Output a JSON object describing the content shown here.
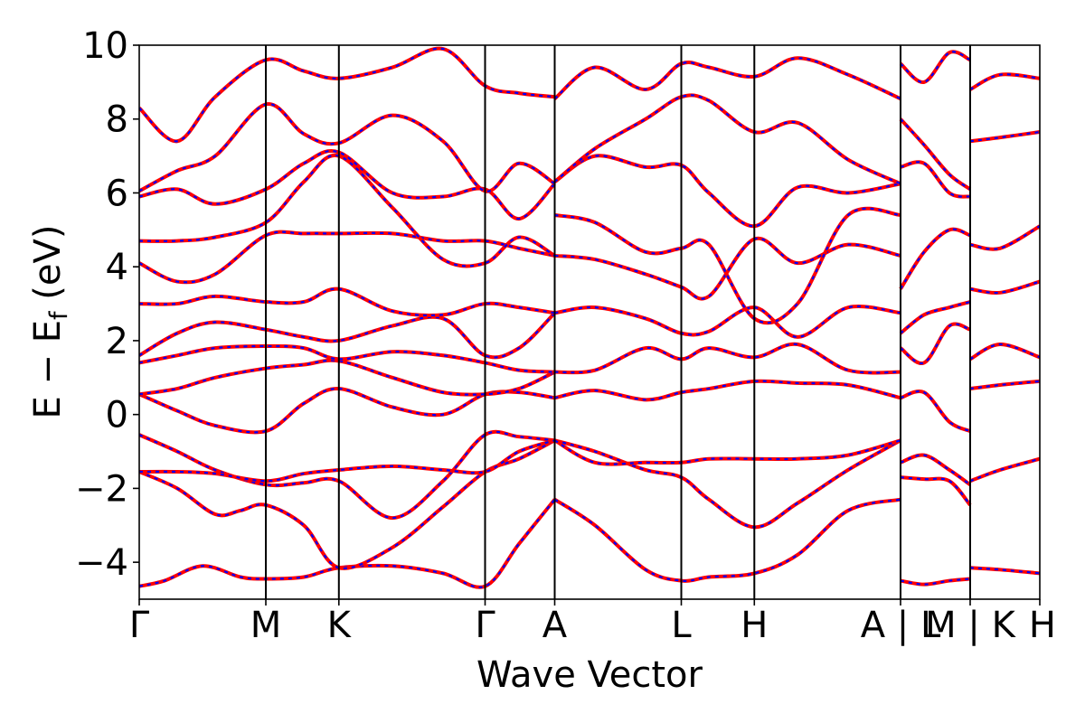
{
  "chart_data": {
    "type": "line",
    "title": "",
    "xlabel": "Wave Vector",
    "ylabel_main": "E − E",
    "ylabel_sub": "f",
    "ylabel_unit": " (eV)",
    "ylim": [
      -5,
      10
    ],
    "yticks": [
      -4,
      -2,
      0,
      2,
      4,
      6,
      8,
      10
    ],
    "ytick_labels": [
      "−4",
      "−2",
      "0",
      "2",
      "4",
      "6",
      "8",
      "10"
    ],
    "kpath_ticks": [
      {
        "label": "Γ",
        "x": 0.0
      },
      {
        "label": "M",
        "x": 1.0
      },
      {
        "label": "K",
        "x": 1.577
      },
      {
        "label": "Γ",
        "x": 2.732
      },
      {
        "label": "A",
        "x": 3.282
      },
      {
        "label": "L",
        "x": 4.282
      },
      {
        "label": "H",
        "x": 4.859
      },
      {
        "label": "A | L",
        "x": 6.014
      },
      {
        "label": "M | K",
        "x": 6.564
      },
      {
        "label": "H",
        "x": 7.114
      }
    ],
    "segment_boundaries": [
      1.0,
      1.577,
      2.732,
      3.282,
      4.282,
      4.859,
      6.014,
      6.564
    ],
    "colors": {
      "band_solid": "#ff0000",
      "band_dashed": "#0000ff",
      "axis": "#000000"
    },
    "series": [
      {
        "x": [
          0,
          0.2,
          0.5,
          0.8,
          1.0,
          1.3,
          1.577,
          2.0,
          2.4,
          2.732,
          3.0,
          3.282
        ],
        "values": [
          -4.65,
          -4.5,
          -4.1,
          -4.4,
          -4.45,
          -4.4,
          -4.15,
          -4.1,
          -4.3,
          -4.65,
          -3.5,
          -2.3
        ]
      },
      {
        "x": [
          0,
          0.3,
          0.6,
          0.8,
          1.0,
          1.3,
          1.577,
          2.0,
          2.4,
          2.732,
          3.0,
          3.282
        ],
        "values": [
          -1.55,
          -2.0,
          -2.7,
          -2.6,
          -2.45,
          -3.0,
          -4.15,
          -3.6,
          -2.5,
          -1.55,
          -1.2,
          -0.7
        ]
      },
      {
        "x": [
          0,
          0.3,
          0.6,
          1.0,
          1.3,
          1.577,
          2.0,
          2.4,
          2.732,
          3.0,
          3.282
        ],
        "values": [
          -0.55,
          -1.0,
          -1.5,
          -1.9,
          -1.85,
          -1.8,
          -2.8,
          -1.8,
          -0.55,
          -0.6,
          -0.7
        ]
      },
      {
        "x": [
          0,
          0.3,
          0.6,
          1.0,
          1.3,
          1.577,
          2.0,
          2.4,
          2.732,
          3.0,
          3.282
        ],
        "values": [
          -1.55,
          -1.55,
          -1.6,
          -1.8,
          -1.6,
          -1.5,
          -1.4,
          -1.5,
          -1.55,
          -1.0,
          -0.7
        ]
      },
      {
        "x": [
          0,
          0.3,
          0.6,
          1.0,
          1.3,
          1.577,
          2.0,
          2.4,
          2.732,
          3.0,
          3.282
        ],
        "values": [
          0.55,
          0.1,
          -0.3,
          -0.45,
          0.3,
          0.7,
          0.2,
          0.0,
          0.55,
          0.6,
          0.45
        ]
      },
      {
        "x": [
          0,
          0.3,
          0.6,
          1.0,
          1.3,
          1.577,
          2.0,
          2.4,
          2.732,
          3.0,
          3.282
        ],
        "values": [
          0.55,
          0.7,
          1.0,
          1.25,
          1.35,
          1.45,
          1.0,
          0.6,
          0.55,
          0.7,
          1.15
        ]
      },
      {
        "x": [
          0,
          0.3,
          0.6,
          1.0,
          1.3,
          1.577,
          2.0,
          2.4,
          2.732,
          3.0,
          3.282
        ],
        "values": [
          1.4,
          1.6,
          1.8,
          1.85,
          1.8,
          1.5,
          1.7,
          1.6,
          1.4,
          1.2,
          1.15
        ]
      },
      {
        "x": [
          0,
          0.3,
          0.6,
          1.0,
          1.3,
          1.577,
          2.0,
          2.4,
          2.732,
          3.0,
          3.282
        ],
        "values": [
          1.6,
          2.2,
          2.5,
          2.3,
          2.1,
          2.0,
          2.4,
          2.6,
          1.6,
          1.8,
          2.75
        ]
      },
      {
        "x": [
          0,
          0.3,
          0.6,
          1.0,
          1.3,
          1.577,
          2.0,
          2.4,
          2.732,
          3.0,
          3.282
        ],
        "values": [
          3.0,
          3.0,
          3.2,
          3.05,
          3.05,
          3.4,
          2.8,
          2.7,
          3.0,
          2.9,
          2.75
        ]
      },
      {
        "x": [
          0,
          0.3,
          0.6,
          1.0,
          1.3,
          1.577,
          2.0,
          2.4,
          2.732,
          3.0,
          3.282
        ],
        "values": [
          4.1,
          3.6,
          3.8,
          4.85,
          4.9,
          4.9,
          4.9,
          4.7,
          4.7,
          4.5,
          4.3
        ]
      },
      {
        "x": [
          0,
          0.3,
          0.6,
          1.0,
          1.3,
          1.577,
          2.0,
          2.4,
          2.732,
          3.0,
          3.282
        ],
        "values": [
          4.7,
          4.7,
          4.8,
          5.2,
          6.3,
          7.0,
          5.6,
          4.2,
          4.1,
          4.8,
          4.3
        ]
      },
      {
        "x": [
          0,
          0.3,
          0.6,
          1.0,
          1.3,
          1.577,
          2.0,
          2.4,
          2.732,
          3.0,
          3.282
        ],
        "values": [
          5.9,
          6.1,
          5.7,
          6.1,
          6.8,
          7.1,
          6.0,
          5.9,
          6.1,
          5.3,
          6.25
        ]
      },
      {
        "x": [
          0,
          0.3,
          0.6,
          1.0,
          1.3,
          1.577,
          2.0,
          2.4,
          2.732,
          3.0,
          3.282
        ],
        "values": [
          6.05,
          6.6,
          7.0,
          8.4,
          7.6,
          7.35,
          8.1,
          7.4,
          6.05,
          6.8,
          6.25
        ]
      },
      {
        "x": [
          0,
          0.3,
          0.6,
          1.0,
          1.3,
          1.577,
          2.0,
          2.4,
          2.732,
          3.0,
          3.282
        ],
        "values": [
          8.3,
          7.4,
          8.6,
          9.6,
          9.3,
          9.1,
          9.4,
          9.9,
          8.9,
          8.7,
          8.6
        ]
      },
      {
        "x": [
          3.282,
          3.6,
          4.0,
          4.282,
          4.5,
          4.859,
          5.2,
          5.6,
          6.014
        ],
        "values": [
          -2.3,
          -3.0,
          -4.2,
          -4.5,
          -4.4,
          -4.3,
          -3.8,
          -2.6,
          -2.3
        ]
      },
      {
        "x": [
          3.282,
          3.6,
          4.0,
          4.282,
          4.5,
          4.859,
          5.2,
          5.6,
          6.014
        ],
        "values": [
          -0.7,
          -1.0,
          -1.5,
          -1.7,
          -2.3,
          -3.05,
          -2.4,
          -1.5,
          -0.7
        ]
      },
      {
        "x": [
          3.282,
          3.6,
          4.0,
          4.282,
          4.5,
          4.859,
          5.2,
          5.6,
          6.014
        ],
        "values": [
          -0.7,
          -1.3,
          -1.3,
          -1.3,
          -1.2,
          -1.2,
          -1.2,
          -1.1,
          -0.7
        ]
      },
      {
        "x": [
          3.282,
          3.6,
          4.0,
          4.282,
          4.5,
          4.859,
          5.2,
          5.6,
          6.014
        ],
        "values": [
          0.45,
          0.65,
          0.4,
          0.6,
          0.7,
          0.9,
          0.85,
          0.8,
          0.45
        ]
      },
      {
        "x": [
          3.282,
          3.6,
          4.0,
          4.282,
          4.5,
          4.859,
          5.2,
          5.6,
          6.014
        ],
        "values": [
          1.15,
          1.2,
          1.8,
          1.5,
          1.8,
          1.55,
          1.9,
          1.2,
          1.15
        ]
      },
      {
        "x": [
          3.282,
          3.6,
          4.0,
          4.282,
          4.5,
          4.859,
          5.2,
          5.6,
          6.014
        ],
        "values": [
          2.75,
          2.9,
          2.6,
          2.2,
          2.25,
          2.9,
          2.1,
          2.9,
          2.75
        ]
      },
      {
        "x": [
          3.282,
          3.6,
          4.0,
          4.282,
          4.5,
          4.859,
          5.2,
          5.6,
          6.014
        ],
        "values": [
          4.3,
          4.2,
          3.8,
          3.45,
          3.2,
          4.75,
          4.1,
          4.6,
          4.3
        ]
      },
      {
        "x": [
          3.282,
          3.6,
          4.0,
          4.282,
          4.5,
          4.859,
          5.2,
          5.6,
          6.014
        ],
        "values": [
          5.4,
          5.2,
          4.4,
          4.5,
          4.6,
          2.6,
          3.0,
          5.4,
          5.4
        ]
      },
      {
        "x": [
          3.282,
          3.6,
          4.0,
          4.282,
          4.5,
          4.859,
          5.2,
          5.6,
          6.014
        ],
        "values": [
          6.3,
          7.0,
          6.7,
          6.75,
          6.0,
          5.1,
          6.15,
          6.0,
          6.25
        ]
      },
      {
        "x": [
          3.282,
          3.6,
          4.0,
          4.282,
          4.5,
          4.859,
          5.2,
          5.6,
          6.014
        ],
        "values": [
          8.55,
          9.4,
          8.8,
          9.5,
          9.4,
          9.15,
          9.65,
          9.2,
          8.55
        ]
      },
      {
        "x": [
          3.282,
          3.6,
          4.0,
          4.282,
          4.5,
          4.859,
          5.2,
          5.6,
          6.014
        ],
        "values": [
          6.3,
          7.2,
          8.0,
          8.6,
          8.5,
          7.65,
          7.9,
          6.9,
          6.25
        ]
      },
      {
        "x": [
          6.014,
          6.2,
          6.4,
          6.564
        ],
        "values": [
          -4.5,
          -4.6,
          -4.5,
          -4.45
        ]
      },
      {
        "x": [
          6.014,
          6.2,
          6.4,
          6.564
        ],
        "values": [
          -1.3,
          -1.1,
          -1.5,
          -1.9
        ]
      },
      {
        "x": [
          6.014,
          6.2,
          6.4,
          6.564
        ],
        "values": [
          -1.7,
          -1.75,
          -1.8,
          -2.45
        ]
      },
      {
        "x": [
          6.014,
          6.2,
          6.4,
          6.564
        ],
        "values": [
          0.45,
          0.6,
          -0.2,
          -0.45
        ]
      },
      {
        "x": [
          6.014,
          6.2,
          6.4,
          6.564
        ],
        "values": [
          2.2,
          2.7,
          2.9,
          3.05
        ]
      },
      {
        "x": [
          6.014,
          6.2,
          6.4,
          6.564
        ],
        "values": [
          1.8,
          1.4,
          2.4,
          2.3
        ]
      },
      {
        "x": [
          6.014,
          6.2,
          6.4,
          6.564
        ],
        "values": [
          3.4,
          4.4,
          5.0,
          4.85
        ]
      },
      {
        "x": [
          6.014,
          6.2,
          6.4,
          6.564
        ],
        "values": [
          6.7,
          6.8,
          6.0,
          5.9
        ]
      },
      {
        "x": [
          6.014,
          6.2,
          6.4,
          6.564
        ],
        "values": [
          8.0,
          7.3,
          6.5,
          6.1
        ]
      },
      {
        "x": [
          6.014,
          6.2,
          6.4,
          6.564
        ],
        "values": [
          9.5,
          9.0,
          9.8,
          9.6
        ]
      },
      {
        "x": [
          6.564,
          6.8,
          7.114
        ],
        "values": [
          -4.15,
          -4.2,
          -4.3
        ]
      },
      {
        "x": [
          6.564,
          6.8,
          7.114
        ],
        "values": [
          -1.8,
          -1.5,
          -1.2
        ]
      },
      {
        "x": [
          6.564,
          6.8,
          7.114
        ],
        "values": [
          0.7,
          0.8,
          0.9
        ]
      },
      {
        "x": [
          6.564,
          6.8,
          7.114
        ],
        "values": [
          1.5,
          1.9,
          1.55
        ]
      },
      {
        "x": [
          6.564,
          6.8,
          7.114
        ],
        "values": [
          3.4,
          3.3,
          3.6
        ]
      },
      {
        "x": [
          6.564,
          6.8,
          7.114
        ],
        "values": [
          4.6,
          4.5,
          5.1
        ]
      },
      {
        "x": [
          6.564,
          6.8,
          7.114
        ],
        "values": [
          7.4,
          7.5,
          7.65
        ]
      },
      {
        "x": [
          6.564,
          6.8,
          7.114
        ],
        "values": [
          8.8,
          9.2,
          9.1
        ]
      }
    ]
  }
}
